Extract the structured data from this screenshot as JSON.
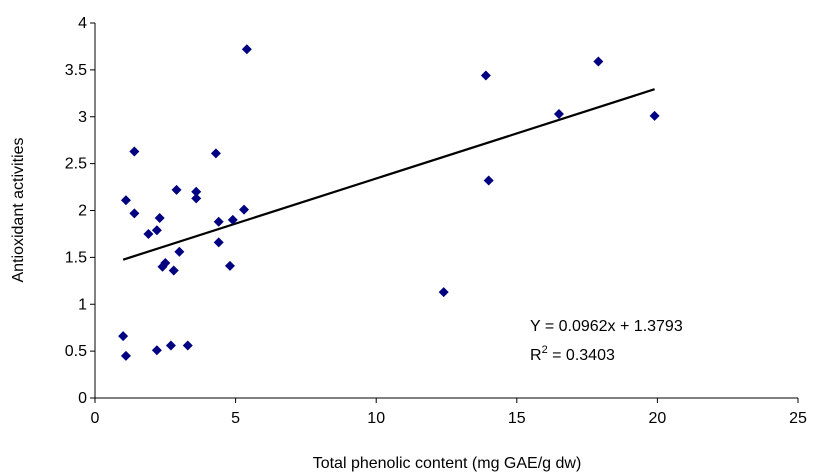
{
  "chart_data": {
    "type": "scatter",
    "xlabel": "Total phenolic content (mg GAE/g dw)",
    "ylabel": "Antioxidant activities",
    "xlim": [
      0,
      25
    ],
    "ylim": [
      0,
      4
    ],
    "x_ticks": [
      0,
      5,
      10,
      15,
      20,
      25
    ],
    "y_ticks": [
      0,
      0.5,
      1,
      1.5,
      2,
      2.5,
      3,
      3.5,
      4
    ],
    "grid": false,
    "marker": "diamond",
    "marker_color": "#000080",
    "trendline_color": "#000000",
    "series": [
      {
        "points": [
          [
            1.0,
            0.66
          ],
          [
            1.1,
            0.45
          ],
          [
            1.1,
            2.11
          ],
          [
            1.4,
            2.63
          ],
          [
            1.4,
            1.97
          ],
          [
            1.9,
            1.75
          ],
          [
            2.2,
            1.79
          ],
          [
            2.3,
            1.92
          ],
          [
            2.2,
            0.51
          ],
          [
            2.4,
            1.4
          ],
          [
            2.5,
            1.44
          ],
          [
            2.7,
            0.56
          ],
          [
            2.8,
            1.36
          ],
          [
            2.9,
            2.22
          ],
          [
            3.0,
            1.56
          ],
          [
            3.3,
            0.56
          ],
          [
            3.6,
            2.2
          ],
          [
            3.6,
            2.13
          ],
          [
            4.3,
            2.61
          ],
          [
            4.4,
            1.88
          ],
          [
            4.4,
            1.66
          ],
          [
            4.8,
            1.41
          ],
          [
            4.9,
            1.9
          ],
          [
            5.3,
            2.01
          ],
          [
            5.4,
            3.72
          ],
          [
            12.4,
            1.13
          ],
          [
            13.9,
            3.44
          ],
          [
            14.0,
            2.32
          ],
          [
            16.5,
            3.03
          ],
          [
            17.9,
            3.59
          ],
          [
            19.9,
            3.01
          ]
        ]
      }
    ],
    "trendline": {
      "slope": 0.0962,
      "intercept": 1.3793,
      "x_range": [
        1.0,
        19.9
      ]
    },
    "annotations": {
      "equation": "Y = 0.0962x + 1.3793",
      "r2_prefix": "R",
      "r2_sup": "2",
      "r2_suffix": " = 0.3403"
    }
  }
}
